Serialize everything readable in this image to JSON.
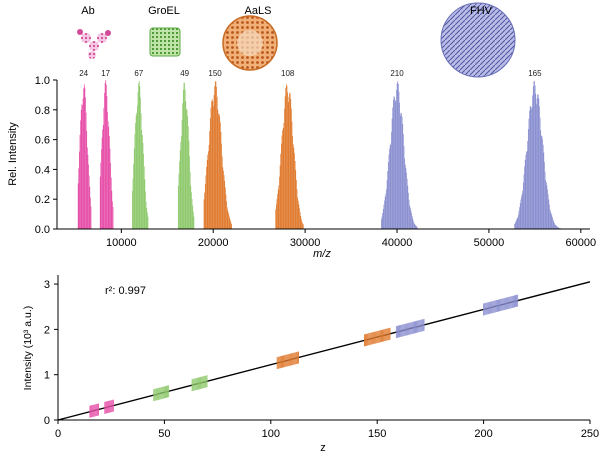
{
  "chart_data": [
    {
      "type": "line",
      "panel": "top",
      "xlabel": "m/z",
      "ylabel": "Rel. Intensity",
      "xlim": [
        3000,
        61000
      ],
      "ylim": [
        0,
        1.0
      ],
      "xticks": [
        10000,
        20000,
        30000,
        40000,
        50000,
        60000
      ],
      "yticks": [
        0.0,
        0.2,
        0.4,
        0.6,
        0.8,
        1.0
      ],
      "ytick_labels": [
        "0.0",
        "0.2",
        "0.4",
        "0.6",
        "0.8",
        "1.0"
      ],
      "grid": false,
      "series": [
        {
          "name": "Ab",
          "color": "#e64fa8",
          "envelopes": [
            {
              "label": "24",
              "center": 5900,
              "width": 420,
              "min": 5300,
              "max": 6700
            },
            {
              "label": "17",
              "center": 8300,
              "width": 420,
              "min": 7700,
              "max": 9100
            }
          ]
        },
        {
          "name": "GroEL",
          "color": "#8ec96c",
          "envelopes": [
            {
              "label": "67",
              "center": 11900,
              "width": 450,
              "min": 11200,
              "max": 12900
            },
            {
              "label": "49",
              "center": 16900,
              "width": 450,
              "min": 16200,
              "max": 17900
            }
          ]
        },
        {
          "name": "AaLS",
          "color": "#e07a2e",
          "envelopes": [
            {
              "label": "150",
              "center": 20200,
              "width": 700,
              "min": 19000,
              "max": 22000
            },
            {
              "label": "108",
              "center": 28100,
              "width": 650,
              "min": 26800,
              "max": 29800
            }
          ]
        },
        {
          "name": "FHV",
          "color": "#8a8fd0",
          "envelopes": [
            {
              "label": "210",
              "center": 40000,
              "width": 750,
              "min": 38300,
              "max": 42200
            },
            {
              "label": "165",
              "center": 55000,
              "width": 850,
              "min": 52800,
              "max": 57800
            }
          ]
        }
      ],
      "top_labels": [
        "Ab",
        "GroEL",
        "AaLS",
        "FHV"
      ]
    },
    {
      "type": "scatter",
      "panel": "bottom",
      "xlabel": "z",
      "ylabel": "Intensity (10³ a.u.)",
      "xlim": [
        0,
        250
      ],
      "ylim": [
        0,
        3.2
      ],
      "xticks": [
        0,
        50,
        100,
        150,
        200,
        250
      ],
      "yticks": [
        0,
        1,
        2,
        3
      ],
      "annotation": "r²: 0.997",
      "fit_line": {
        "x": [
          0,
          250
        ],
        "y": [
          0,
          3.05
        ],
        "color": "#000000"
      },
      "groups": [
        {
          "name": "Ab",
          "color": "#e64fa8",
          "z_min": 15,
          "z_max": 19
        },
        {
          "name": "Ab",
          "color": "#e64fa8",
          "z_min": 22,
          "z_max": 26
        },
        {
          "name": "GroEL",
          "color": "#8ec96c",
          "z_min": 45,
          "z_max": 52
        },
        {
          "name": "GroEL",
          "color": "#8ec96c",
          "z_min": 63,
          "z_max": 70
        },
        {
          "name": "AaLS",
          "color": "#e07a2e",
          "z_min": 103,
          "z_max": 113
        },
        {
          "name": "AaLS",
          "color": "#e07a2e",
          "z_min": 144,
          "z_max": 156
        },
        {
          "name": "FHV",
          "color": "#8a8fd0",
          "z_min": 159,
          "z_max": 172
        },
        {
          "name": "FHV",
          "color": "#8a8fd0",
          "z_min": 200,
          "z_max": 216
        }
      ]
    }
  ]
}
